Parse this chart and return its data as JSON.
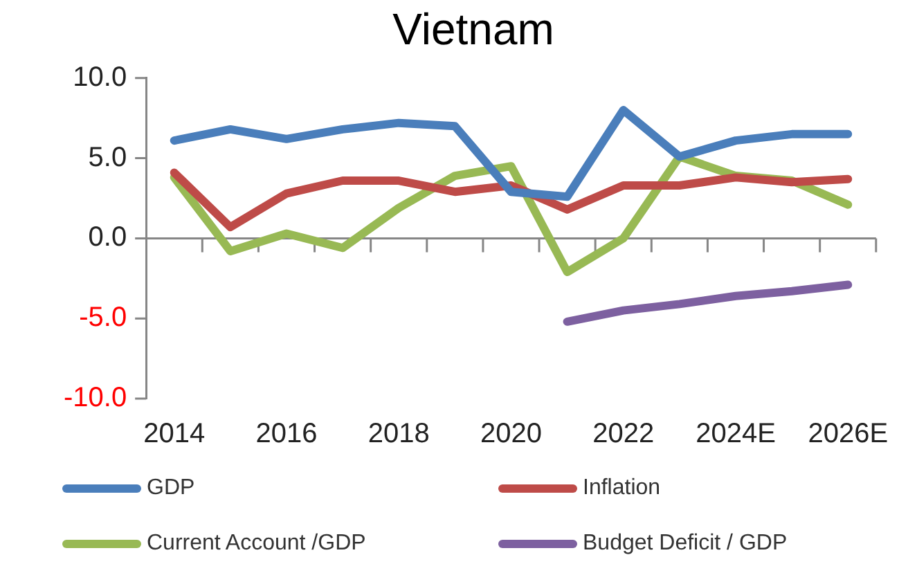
{
  "chart_data": {
    "type": "line",
    "title": "Vietnam",
    "categories": [
      "2014",
      null,
      "2016",
      null,
      "2018",
      null,
      "2020",
      null,
      "2022",
      null,
      "2024E",
      null,
      "2026E"
    ],
    "series": [
      {
        "name": "GDP",
        "color": "#4a7ebb",
        "values": [
          6.1,
          6.8,
          6.2,
          6.8,
          7.2,
          7.0,
          2.9,
          2.6,
          8.0,
          5.1,
          6.1,
          6.5,
          6.5
        ]
      },
      {
        "name": "Inflation",
        "color": "#be4b48",
        "values": [
          4.1,
          0.7,
          2.8,
          3.6,
          3.6,
          2.9,
          3.3,
          1.8,
          3.3,
          3.3,
          3.8,
          3.5,
          3.7
        ]
      },
      {
        "name": "Current Account /GDP",
        "color": "#98b954",
        "values": [
          3.8,
          -0.8,
          0.3,
          -0.6,
          1.9,
          3.9,
          4.5,
          -2.1,
          0.0,
          5.1,
          3.9,
          3.6,
          2.1
        ]
      },
      {
        "name": "Budget Deficit / GDP",
        "color": "#7d60a0",
        "values": [
          null,
          null,
          null,
          null,
          null,
          null,
          null,
          -5.2,
          -4.5,
          -4.1,
          -3.6,
          -3.3,
          -2.9
        ]
      }
    ],
    "ylim": [
      -10,
      10
    ],
    "yticks": [
      {
        "value": -10,
        "label": "-10.0"
      },
      {
        "value": -5,
        "label": "-5.0"
      },
      {
        "value": 0,
        "label": "0.0"
      },
      {
        "value": 5,
        "label": "5.0"
      },
      {
        "value": 10,
        "label": "10.0"
      }
    ],
    "legend": "bottom",
    "marker": "none",
    "line_style": "solid"
  }
}
